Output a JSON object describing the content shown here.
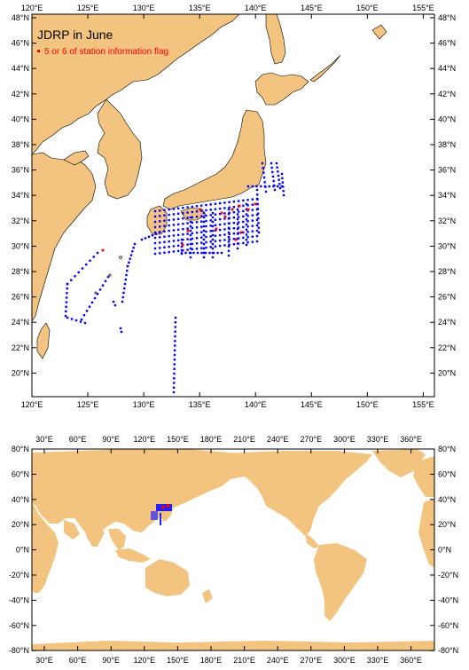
{
  "top_map": {
    "title": "JDRP in June",
    "legend": "5 or 6 of station information flag",
    "lon_labels": [
      "120°E",
      "125°E",
      "130°E",
      "135°E",
      "140°E",
      "145°E",
      "150°E",
      "155°E"
    ],
    "lat_labels": [
      "48°N",
      "46°N",
      "44°N",
      "42°N",
      "40°N",
      "38°N",
      "36°N",
      "34°N",
      "32°N",
      "30°N",
      "28°N",
      "26°N",
      "24°N",
      "22°N",
      "20°N"
    ],
    "colors": {
      "land": "#f2c47f",
      "stations": "#0000ff",
      "flagged": "#ff0000"
    }
  },
  "bottom_map": {
    "lon_labels": [
      "30°E",
      "60°E",
      "90°E",
      "120°E",
      "150°E",
      "180°E",
      "210°E",
      "240°E",
      "270°E",
      "300°E",
      "330°E",
      "360°E"
    ],
    "lat_labels": [
      "80°N",
      "60°N",
      "40°N",
      "20°N",
      "0°N",
      "-20°N",
      "-40°N",
      "-60°N",
      "-80°N"
    ]
  }
}
